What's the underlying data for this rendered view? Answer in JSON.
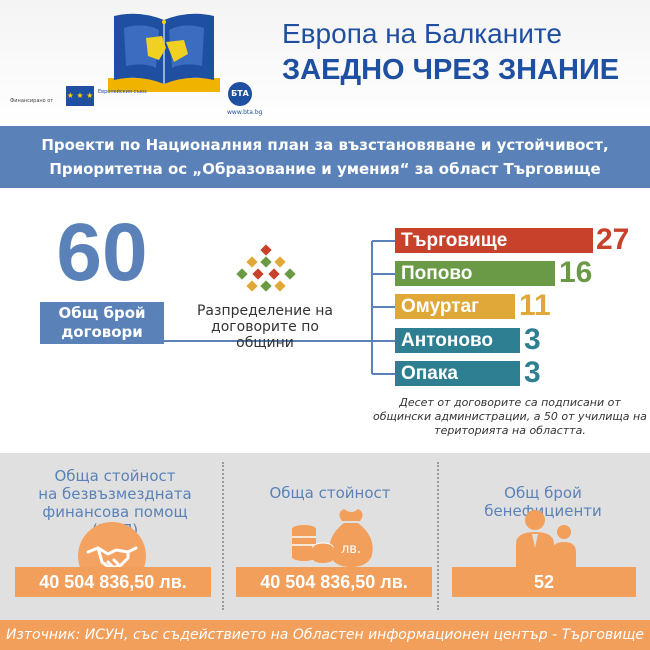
{
  "header": {
    "title_line1": "Европа на Балканите",
    "title_line2": "ЗАЕДНО ЧРЕЗ ЗНАНИЕ",
    "funded_by": "Финансирано от",
    "eu_text": "Европейския съюз",
    "bta_logo": "БТА",
    "bta_url": "www.bta.bg"
  },
  "banner": {
    "line1": "Проекти по Националния план за възстановяване и устойчивост,",
    "line2": "Приоритетна ос „Образование и умения“ за област Търговище"
  },
  "total": {
    "number": "60",
    "label_line1": "Общ брой",
    "label_line2": "договори"
  },
  "distribution": {
    "line1": "Разпределение на",
    "line2": "договорите по общини"
  },
  "municipalities": [
    {
      "name": "Търговище",
      "count": "27",
      "color": "#c8412a"
    },
    {
      "name": "Попово",
      "count": "16",
      "color": "#6a9a45"
    },
    {
      "name": "Омуртаг",
      "count": "11",
      "color": "#e0a838"
    },
    {
      "name": "Антоново",
      "count": "3",
      "color": "#2f7f93"
    },
    {
      "name": "Опака",
      "count": "3",
      "color": "#2f7f93"
    }
  ],
  "note": {
    "line1": "Десет от договорите са подписани от",
    "line2": "общински администрации, а 50 от училища на",
    "line3": "територията на областта."
  },
  "panels": {
    "grant": {
      "label_line1": "Обща стойност",
      "label_line2": "на безвъзмездната",
      "label_line3": "финансова помощ (БФП)",
      "value": "40 504 836,50 лв."
    },
    "total_value": {
      "label": "Обща стойност",
      "value": "40 504 836,50 лв.",
      "bag_label": "лв."
    },
    "beneficiaries": {
      "label": "Общ брой бенефициенти",
      "value": "52"
    }
  },
  "footer": {
    "source": "Източник: ИСУН, със съдействието на Областен информационен център - Търговище"
  }
}
